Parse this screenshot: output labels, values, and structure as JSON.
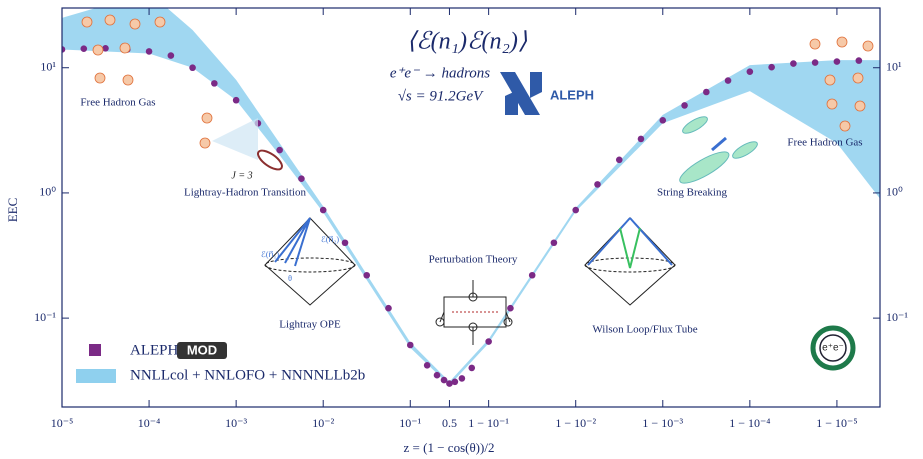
{
  "chart_data": {
    "type": "scatter",
    "x_label": "z = (1 − cos(θ))/2",
    "y_label": "EEC",
    "log_y": true,
    "legend": "lower left",
    "xlim": [
      1e-05,
      0.9999968
    ],
    "ylim": [
      0.0195,
      30
    ],
    "xticks": [
      {
        "value": 1e-05,
        "label": "10⁻⁵"
      },
      {
        "value": 0.0001,
        "label": "10⁻⁴"
      },
      {
        "value": 0.001,
        "label": "10⁻³"
      },
      {
        "value": 0.01,
        "label": "10⁻²"
      },
      {
        "value": 0.1,
        "label": "10⁻¹"
      },
      0.5,
      {
        "value": 0.9,
        "label": "1 − 10⁻¹"
      },
      {
        "value": 0.99,
        "label": "1 − 10⁻²"
      },
      {
        "value": 0.999,
        "label": "1 − 10⁻³"
      },
      {
        "value": 0.9999,
        "label": "1 − 10⁻⁴"
      },
      {
        "value": 0.99999,
        "label": "1 − 10⁻⁵"
      }
    ],
    "yticks": [
      {
        "value": 0.1,
        "label": "10⁻¹"
      },
      {
        "value": 1,
        "label": "10⁰"
      },
      {
        "value": 10,
        "label": "10¹"
      }
    ],
    "series": [
      {
        "name": "ALEPH",
        "color": "#7b2a86",
        "x": [
          1e-05,
          1.78e-05,
          3.16e-05,
          5.62e-05,
          0.0001,
          0.000178,
          0.000316,
          0.000562,
          0.001,
          0.00178,
          0.00316,
          0.00562,
          0.01,
          0.0178,
          0.0316,
          0.0562,
          0.1,
          0.2,
          0.3,
          0.4,
          0.5,
          0.6,
          0.7,
          0.8,
          0.9,
          0.9438,
          0.9684,
          0.9822,
          0.99,
          0.99438,
          0.99684,
          0.99822,
          0.999,
          0.999438,
          0.999684,
          0.999822,
          0.9999,
          0.9999438,
          0.9999684,
          0.9999822,
          0.99999,
          0.9999944
        ],
        "values": [
          14.0,
          14.2,
          14.3,
          14.0,
          13.5,
          12.5,
          10.0,
          7.5,
          5.5,
          3.6,
          2.2,
          1.3,
          0.73,
          0.4,
          0.22,
          0.12,
          0.061,
          0.042,
          0.035,
          0.032,
          0.03,
          0.031,
          0.033,
          0.04,
          0.065,
          0.12,
          0.22,
          0.4,
          0.73,
          1.17,
          1.84,
          2.7,
          3.8,
          5.0,
          6.4,
          7.9,
          9.3,
          10.1,
          10.8,
          11.0,
          11.2,
          11.4
        ]
      },
      {
        "name": "NNLLcol + NNLOFO + NNNNLLb2b",
        "color": "#8fd0ee",
        "x": [
          1e-05,
          0.0001,
          0.000316,
          0.001,
          0.00316,
          0.01,
          0.1,
          0.5,
          0.9,
          0.99,
          0.999,
          0.9999,
          0.99999,
          0.9999968
        ],
        "lower": [
          14,
          13,
          10,
          5.5,
          2.0,
          0.7,
          0.058,
          0.029,
          0.063,
          0.71,
          3.6,
          6.5,
          2.5,
          0.9
        ],
        "upper": [
          25,
          40,
          20,
          8,
          2.5,
          0.78,
          0.064,
          0.031,
          0.068,
          0.76,
          4.2,
          10.5,
          11.5,
          11.5
        ]
      }
    ],
    "annotations": [
      "⟨ℰ(n₁)ℰ(n₂)⟩",
      "e⁺e⁻ → hadrons",
      "√s = 91.2GeV",
      "ALEPH",
      "Free Hadron Gas",
      "Free Hadron Gas",
      "Lightray-Hadron Transition",
      "String Breaking",
      "Perturbation Theory",
      "Lightray OPE",
      "Wilson Loop/Flux Tube",
      "J = 3",
      "MOD",
      "e⁺e⁻",
      "ℰ(n⃗₁)",
      "ℰ(n⃗₂)",
      "θ"
    ]
  }
}
